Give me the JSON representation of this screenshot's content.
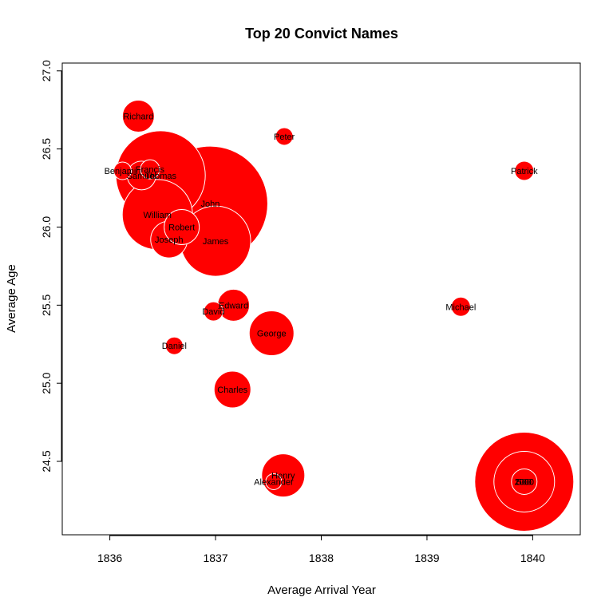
{
  "chart_data": {
    "type": "scatter",
    "title": "Top 20 Convict Names",
    "xlabel": "Average Arrival Year",
    "ylabel": "Average Age",
    "xlim": [
      1835.55,
      1840.45
    ],
    "ylim": [
      24.03,
      27.05
    ],
    "xticks": [
      1836,
      1837,
      1838,
      1839,
      1840
    ],
    "yticks": [
      24.5,
      25.0,
      25.5,
      26.0,
      26.5,
      27.0
    ],
    "ytick_labels": [
      "24.5",
      "25.0",
      "25.5",
      "26.0",
      "26.5",
      "27.0"
    ],
    "grid": false,
    "legend": "none",
    "fill_color": "#ff0000",
    "border_color": "#ffffff",
    "size_note_radius_units": "relative circle radius",
    "points": [
      {
        "label": "John",
        "x": 1836.95,
        "y": 26.15,
        "r": 72
      },
      {
        "label": "Thomas",
        "x": 1836.48,
        "y": 26.33,
        "r": 56
      },
      {
        "label": "William",
        "x": 1836.45,
        "y": 26.08,
        "r": 44
      },
      {
        "label": "James",
        "x": 1837.0,
        "y": 25.91,
        "r": 44
      },
      {
        "label": "Joseph",
        "x": 1836.56,
        "y": 25.92,
        "r": 23
      },
      {
        "label": "Robert",
        "x": 1836.68,
        "y": 26.0,
        "r": 22
      },
      {
        "label": "Samuel",
        "x": 1836.3,
        "y": 26.33,
        "r": 18
      },
      {
        "label": "Francis",
        "x": 1836.38,
        "y": 26.37,
        "r": 12
      },
      {
        "label": "Benjamin",
        "x": 1836.12,
        "y": 26.36,
        "r": 11
      },
      {
        "label": "Richard",
        "x": 1836.27,
        "y": 26.71,
        "r": 20
      },
      {
        "label": "Peter",
        "x": 1837.65,
        "y": 26.58,
        "r": 11
      },
      {
        "label": "Patrick",
        "x": 1839.92,
        "y": 26.36,
        "r": 12
      },
      {
        "label": "Edward",
        "x": 1837.17,
        "y": 25.5,
        "r": 20
      },
      {
        "label": "David",
        "x": 1836.98,
        "y": 25.46,
        "r": 12
      },
      {
        "label": "George",
        "x": 1837.53,
        "y": 25.32,
        "r": 28
      },
      {
        "label": "Daniel",
        "x": 1836.61,
        "y": 25.24,
        "r": 11
      },
      {
        "label": "Charles",
        "x": 1837.16,
        "y": 24.96,
        "r": 23
      },
      {
        "label": "Michael",
        "x": 1839.32,
        "y": 25.49,
        "r": 12
      },
      {
        "label": "Henry",
        "x": 1837.64,
        "y": 24.41,
        "r": 27
      },
      {
        "label": "Alexander",
        "x": 1837.55,
        "y": 24.37,
        "r": 10
      },
      {
        "label": "2000",
        "x": 1839.92,
        "y": 24.37,
        "r": 62
      },
      {
        "label": "1000",
        "x": 1839.92,
        "y": 24.37,
        "r": 38
      },
      {
        "label": "500",
        "x": 1839.92,
        "y": 24.37,
        "r": 16
      }
    ]
  }
}
